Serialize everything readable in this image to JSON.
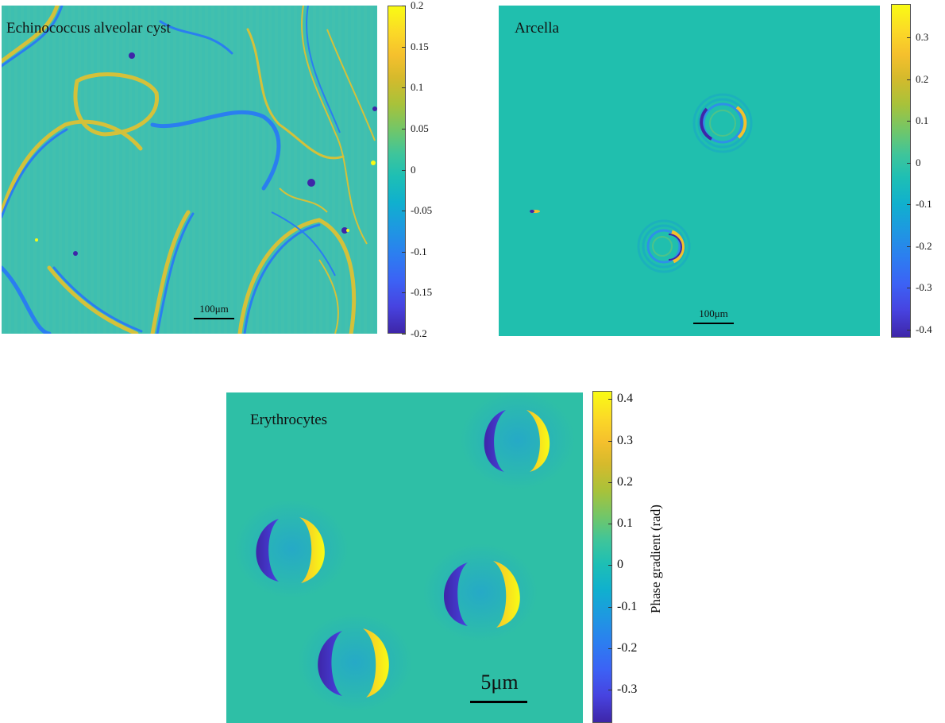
{
  "panels": [
    {
      "title": "Echinococcus alveolar cyst",
      "scalebar_label": "100μm",
      "colorbar": {
        "ticks": [
          "0.2",
          "0.15",
          "0.1",
          "0.05",
          "0",
          "-0.05",
          "-0.1",
          "-0.15",
          "-0.2"
        ],
        "min": -0.2,
        "max": 0.2
      }
    },
    {
      "title": "Arcella",
      "scalebar_label": "100μm",
      "colorbar": {
        "ticks": [
          "0.3",
          "0.2",
          "0.1",
          "0",
          "-0.1",
          "-0.2",
          "-0.3",
          "-0.4"
        ],
        "min": -0.42,
        "max": 0.38
      }
    },
    {
      "title": "Erythrocytes",
      "scalebar_label": "5μm",
      "colorbar": {
        "ticks": [
          "0.4",
          "0.3",
          "0.2",
          "0.1",
          "0",
          "-0.1",
          "-0.2",
          "-0.3"
        ],
        "min": -0.38,
        "max": 0.42,
        "label": "Phase gradient (rad)"
      }
    }
  ],
  "colormap": [
    "#3e26a8",
    "#4743e0",
    "#3c62f5",
    "#2c7ef0",
    "#1e98e1",
    "#10b0ce",
    "#1ebfb4",
    "#3fc59a",
    "#70c66a",
    "#a8c23a",
    "#d5ba2c",
    "#f5c02d",
    "#fbd927",
    "#f9fb14"
  ]
}
